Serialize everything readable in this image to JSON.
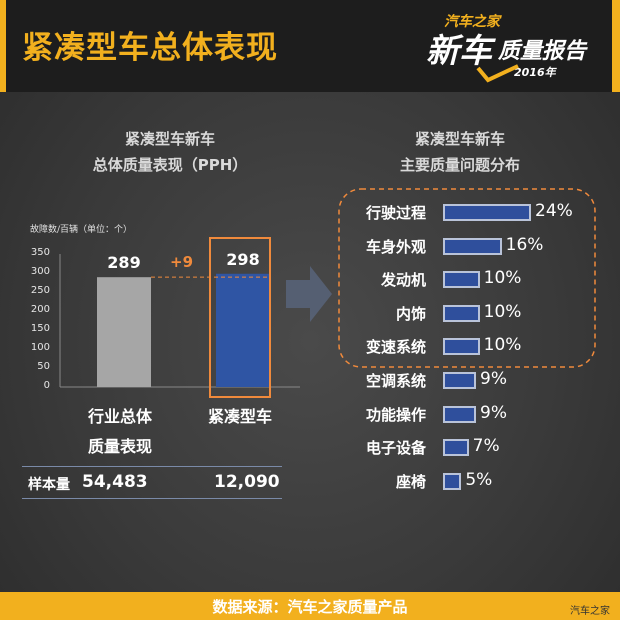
{
  "header": {
    "title": "紧凑型车总体表现",
    "logo_line1": "汽车之家",
    "logo_line2": "新车",
    "logo_line3": "质量报告",
    "logo_year": "2016年"
  },
  "left_section": {
    "title_line1": "紧凑型车新车",
    "title_line2": "总体质量表现（PPH）",
    "unit_label": "故障数/百辆（单位：个）",
    "category1_line1": "行业总体",
    "category1_line2": "质量表现",
    "category2": "紧凑型车",
    "sample_label": "样本量",
    "sample_values": [
      "54,483",
      "12,090"
    ]
  },
  "right_section": {
    "title_line1": "紧凑型车新车",
    "title_line2": "主要质量问题分布"
  },
  "chart_data": [
    {
      "type": "bar",
      "categories": [
        "行业总体质量表现",
        "紧凑型车"
      ],
      "values": [
        289,
        298
      ],
      "value_labels": [
        "289",
        "298"
      ],
      "difference_label": "+9",
      "ylabel": "故障数/百辆（单位：个）",
      "ylim": [
        0,
        350
      ],
      "yticks": [
        "350",
        "300",
        "250",
        "200",
        "150",
        "100",
        "50",
        "0"
      ],
      "colors": [
        "#a6a6a6",
        "#2f55a4"
      ],
      "highlight_color": "#f08a3c"
    },
    {
      "type": "bar",
      "orientation": "horizontal",
      "categories": [
        "行驶过程",
        "车身外观",
        "发动机",
        "内饰",
        "变速系统",
        "空调系统",
        "功能操作",
        "电子设备",
        "座椅"
      ],
      "values": [
        24,
        16,
        10,
        10,
        10,
        9,
        9,
        7,
        5
      ],
      "value_labels": [
        "24%",
        "16%",
        "10%",
        "10%",
        "10%",
        "9%",
        "9%",
        "7%",
        "5%"
      ],
      "xlim": [
        0,
        24
      ],
      "color": "#2f4f9c",
      "highlighted_categories": [
        "行驶过程",
        "车身外观",
        "发动机",
        "内饰",
        "变速系统"
      ]
    }
  ],
  "footer": {
    "text": "数据来源：汽车之家质量产品",
    "watermark": "汽车之家"
  }
}
